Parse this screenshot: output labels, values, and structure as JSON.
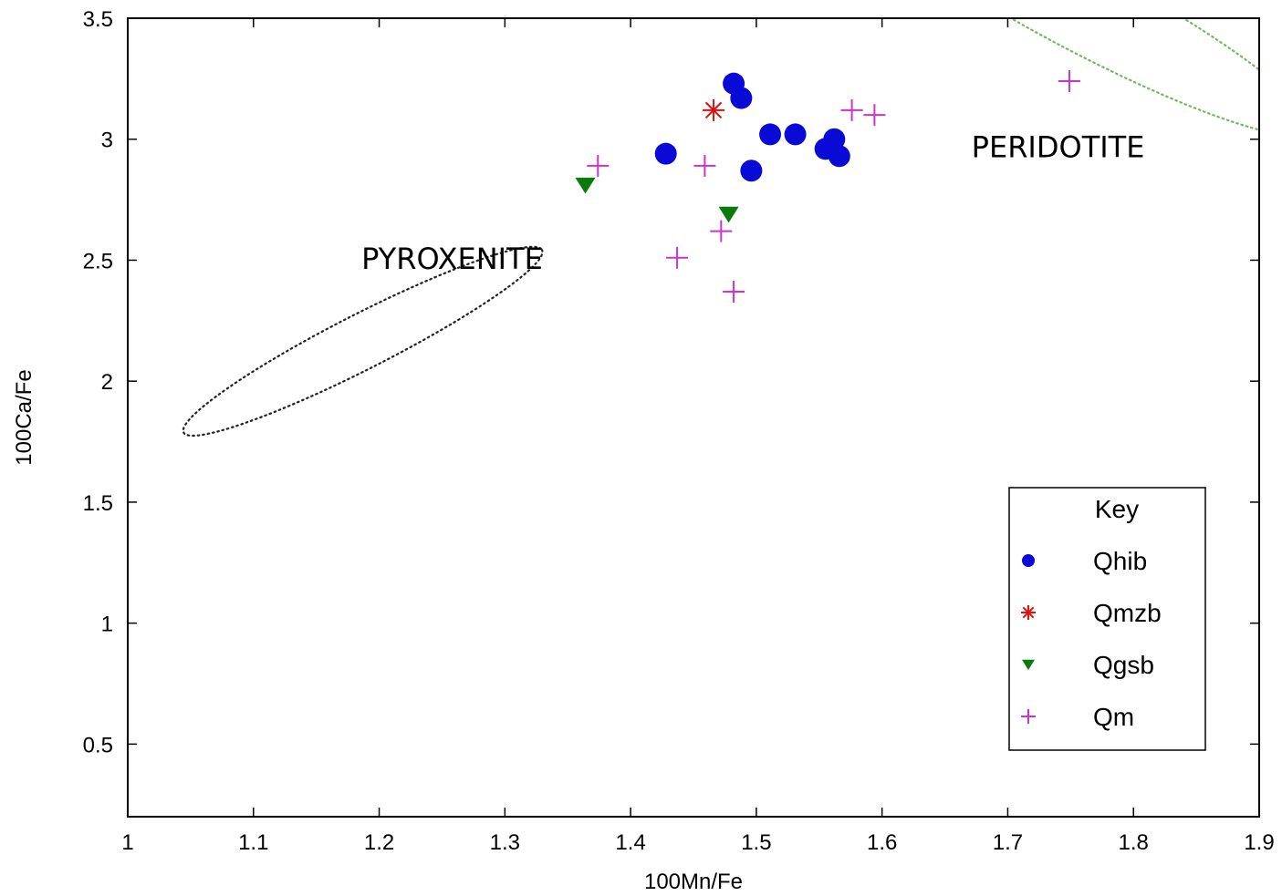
{
  "chart_data": {
    "type": "scatter",
    "xlabel": "100Mn/Fe",
    "ylabel": "100Ca/Fe",
    "xlim": [
      1,
      1.9
    ],
    "ylim": [
      0.2,
      3.5
    ],
    "x_ticks": [
      "1",
      "1.1",
      "1.2",
      "1.3",
      "1.4",
      "1.5",
      "1.6",
      "1.7",
      "1.8",
      "1.9"
    ],
    "y_ticks": [
      "0.5",
      "1",
      "1.5",
      "2",
      "2.5",
      "3",
      "3.5"
    ],
    "grid": false,
    "legend": {
      "title": "Key",
      "placement": "bottom-right"
    },
    "series": [
      {
        "name": "Qhib",
        "marker": "filled-circle",
        "color": "#0a0ad6",
        "points": [
          [
            1.482,
            3.23
          ],
          [
            1.488,
            3.17
          ],
          [
            1.428,
            2.94
          ],
          [
            1.511,
            3.02
          ],
          [
            1.531,
            3.02
          ],
          [
            1.496,
            2.87
          ],
          [
            1.562,
            3.0
          ],
          [
            1.555,
            2.96
          ],
          [
            1.566,
            2.93
          ]
        ]
      },
      {
        "name": "Qmzb",
        "marker": "asterisk",
        "color": "#e01010",
        "points": [
          [
            1.466,
            3.12
          ]
        ]
      },
      {
        "name": "Qgsb",
        "marker": "down-triangle",
        "color": "#0a7a0a",
        "points": [
          [
            1.364,
            2.81
          ],
          [
            1.478,
            2.69
          ]
        ]
      },
      {
        "name": "Qm",
        "marker": "plus",
        "color": "#cc33cc",
        "points": [
          [
            1.374,
            2.89
          ],
          [
            1.459,
            2.89
          ],
          [
            1.437,
            2.51
          ],
          [
            1.472,
            2.62
          ],
          [
            1.482,
            2.37
          ],
          [
            1.576,
            3.12
          ],
          [
            1.594,
            3.1
          ],
          [
            1.749,
            3.24
          ]
        ]
      }
    ],
    "regions": [
      {
        "name": "PYROXENITE",
        "style": "dotted",
        "color": "#222222",
        "center": [
          1.187,
          2.165
        ],
        "major_radius": 0.16,
        "minor_radius": 0.038,
        "angle_deg": -27
      },
      {
        "name": "PERIDOTITE",
        "style": "dotted",
        "color": "#6cbb5a",
        "center": [
          1.755,
          3.55
        ],
        "major_radius": 0.21,
        "minor_radius": 0.1,
        "angle_deg": 28
      }
    ],
    "annotations": [
      {
        "text": "PYROXENITE",
        "x": 1.258,
        "y": 2.51
      },
      {
        "text": "PERIDOTITE",
        "x": 1.74,
        "y": 2.97
      }
    ]
  }
}
